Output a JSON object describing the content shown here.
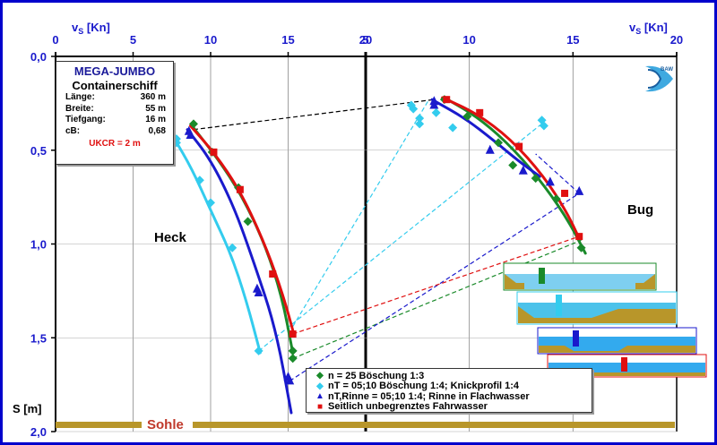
{
  "info": {
    "title": "MEGA-JUMBO",
    "subtitle": "Containerschiff",
    "rows": [
      {
        "k": "Länge:",
        "v": "360 m"
      },
      {
        "k": "Breite:",
        "v": "55 m"
      },
      {
        "k": "Tiefgang:",
        "v": "16 m"
      },
      {
        "k": "cB:",
        "v": "0,68"
      }
    ],
    "ukc": "UKCR = 2 m"
  },
  "logo_text": "BAW",
  "labels": {
    "heck": "Heck",
    "bug": "Bug",
    "sohle": "Sohle"
  },
  "legend": [
    {
      "symbol": "diamond",
      "color": "#1a8a2a",
      "text": "n = 25  Böschung 1:3"
    },
    {
      "symbol": "diamond",
      "color": "#33ccee",
      "text": "nT = 05;10 Böschung 1:4;  Knickprofil 1:4"
    },
    {
      "symbol": "triangle",
      "color": "#1a1acc",
      "text": "nT,Rinne = 05;10 1:4;  Rinne in Flachwasser"
    },
    {
      "symbol": "square",
      "color": "#e01010",
      "text": "Seitlich unbegrenztes Fahrwasser"
    }
  ],
  "chart_data": {
    "type": "scatter",
    "title": "",
    "xlabel": "vS [Kn]",
    "ylabel": "S [m]",
    "y_ticks": [
      "0,0",
      "0,5",
      "1,0",
      "1,5",
      "2,0"
    ],
    "ylim": [
      0,
      2.0
    ],
    "y_reversed": true,
    "panels": [
      {
        "name": "Heck",
        "xlim": [
          0,
          20
        ],
        "x_ticks": [
          "0",
          "5",
          "10",
          "15",
          "20"
        ]
      },
      {
        "name": "Bug",
        "xlim": [
          5,
          20
        ],
        "x_ticks": [
          "5",
          "10",
          "15",
          "20"
        ]
      }
    ],
    "series": [
      {
        "name": "n = 25  Böschung 1:3",
        "color": "#1a8a2a",
        "marker": "diamond",
        "heck": [
          [
            8.9,
            0.36
          ],
          [
            10.1,
            0.51
          ],
          [
            11.8,
            0.7
          ],
          [
            12.4,
            0.88
          ],
          [
            15.3,
            1.57
          ],
          [
            15.3,
            1.61
          ]
        ],
        "bug": [
          [
            8.8,
            0.23
          ],
          [
            9.9,
            0.32
          ],
          [
            11.4,
            0.46
          ],
          [
            12.1,
            0.58
          ],
          [
            13.2,
            0.65
          ],
          [
            14.2,
            0.76
          ],
          [
            15.4,
            1.02
          ]
        ]
      },
      {
        "name": "nT = 05;10 Böschung 1:4;  Knickprofil 1:4",
        "color": "#33ccee",
        "marker": "diamond",
        "heck": [
          [
            7.8,
            0.44
          ],
          [
            7.8,
            0.46
          ],
          [
            9.3,
            0.66
          ],
          [
            10.0,
            0.78
          ],
          [
            11.4,
            1.02
          ],
          [
            13.1,
            1.57
          ]
        ],
        "bug": [
          [
            7.2,
            0.26
          ],
          [
            7.3,
            0.28
          ],
          [
            7.6,
            0.33
          ],
          [
            7.6,
            0.36
          ],
          [
            8.4,
            0.3
          ],
          [
            9.2,
            0.38
          ],
          [
            13.5,
            0.34
          ],
          [
            13.6,
            0.37
          ]
        ]
      },
      {
        "name": "nT,Rinne = 05;10 1:4;  Rinne in Flachwasser",
        "color": "#1a1acc",
        "marker": "triangle",
        "heck": [
          [
            8.6,
            0.4
          ],
          [
            8.7,
            0.42
          ],
          [
            13.0,
            1.24
          ],
          [
            13.1,
            1.26
          ],
          [
            15.0,
            1.71
          ],
          [
            15.1,
            1.73
          ]
        ],
        "bug": [
          [
            8.3,
            0.24
          ],
          [
            8.3,
            0.26
          ],
          [
            11.0,
            0.5
          ],
          [
            12.6,
            0.61
          ],
          [
            13.9,
            0.67
          ],
          [
            15.3,
            0.72
          ]
        ]
      },
      {
        "name": "Seitlich unbegrenztes Fahrwasser",
        "color": "#e01010",
        "marker": "square",
        "heck": [
          [
            10.2,
            0.51
          ],
          [
            11.9,
            0.71
          ],
          [
            14.0,
            1.16
          ],
          [
            15.3,
            1.48
          ]
        ],
        "bug": [
          [
            8.9,
            0.23
          ],
          [
            10.5,
            0.3
          ],
          [
            12.4,
            0.48
          ],
          [
            14.6,
            0.73
          ],
          [
            15.3,
            0.96
          ]
        ]
      }
    ],
    "fit_curves": [
      {
        "color": "#1a8a2a",
        "heck": [
          [
            8.8,
            0.37
          ],
          [
            10.5,
            0.55
          ],
          [
            12.0,
            0.74
          ],
          [
            13.5,
            1.0
          ],
          [
            14.6,
            1.28
          ],
          [
            15.3,
            1.58
          ]
        ],
        "bug": [
          [
            8.8,
            0.22
          ],
          [
            10.5,
            0.33
          ],
          [
            12.2,
            0.5
          ],
          [
            13.7,
            0.7
          ],
          [
            14.8,
            0.88
          ],
          [
            15.6,
            1.05
          ]
        ]
      },
      {
        "color": "#33ccee",
        "heck": [
          [
            7.6,
            0.43
          ],
          [
            8.8,
            0.6
          ],
          [
            10.0,
            0.82
          ],
          [
            11.3,
            1.05
          ],
          [
            12.3,
            1.3
          ],
          [
            13.2,
            1.58
          ]
        ],
        "bug": []
      },
      {
        "color": "#1a1acc",
        "heck": [
          [
            8.5,
            0.39
          ],
          [
            10.0,
            0.55
          ],
          [
            11.5,
            0.8
          ],
          [
            12.8,
            1.1
          ],
          [
            14.2,
            1.45
          ],
          [
            15.2,
            1.9
          ]
        ],
        "bug": [
          [
            8.2,
            0.23
          ],
          [
            9.8,
            0.33
          ],
          [
            11.2,
            0.45
          ],
          [
            12.4,
            0.56
          ],
          [
            13.4,
            0.64
          ]
        ]
      },
      {
        "color": "#e01010",
        "heck": [
          [
            8.7,
            0.37
          ],
          [
            10.3,
            0.52
          ],
          [
            12.0,
            0.73
          ],
          [
            13.6,
            1.02
          ],
          [
            14.7,
            1.28
          ],
          [
            15.4,
            1.49
          ]
        ],
        "bug": [
          [
            8.7,
            0.22
          ],
          [
            10.3,
            0.3
          ],
          [
            12.0,
            0.44
          ],
          [
            13.6,
            0.64
          ],
          [
            14.7,
            0.83
          ],
          [
            15.3,
            0.97
          ]
        ]
      }
    ],
    "connectors": [
      {
        "color": "#000000",
        "from": [
          8.9,
          0.39
        ],
        "to": [
          8.3,
          0.23
        ]
      },
      {
        "color": "#1a8a2a",
        "from": [
          15.3,
          1.61
        ],
        "to": [
          15.4,
          0.98
        ]
      },
      {
        "color": "#33ccee",
        "from": [
          13.1,
          1.57
        ],
        "to": [
          13.6,
          0.35
        ]
      },
      {
        "color": "#33ccee",
        "from": [
          15.3,
          1.44
        ],
        "to": [
          8.0,
          0.24
        ]
      },
      {
        "color": "#1a1acc",
        "from": [
          15.1,
          1.73
        ],
        "to": [
          15.3,
          0.73
        ]
      },
      {
        "color": "#e01010",
        "from": [
          15.3,
          1.48
        ],
        "to": [
          15.3,
          0.96
        ]
      },
      {
        "color": "#1a1acc",
        "from": [
          15.3,
          0.73
        ],
        "to": [
          13.2,
          0.52
        ],
        "panel": "bug"
      }
    ]
  }
}
